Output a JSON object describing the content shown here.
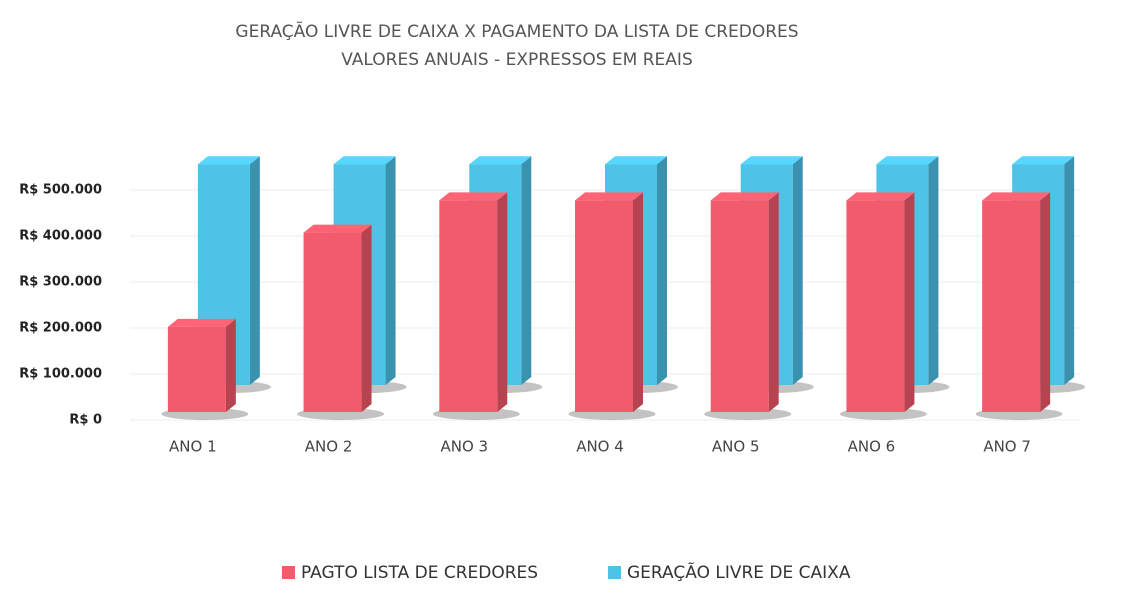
{
  "chart_data": {
    "type": "bar3d",
    "title": "GERAÇÃO LIVRE DE CAIXA X PAGAMENTO DA LISTA DE CREDORES",
    "subtitle": "VALORES ANUAIS - EXPRESSOS EM REAIS",
    "categories": [
      "ANO 1",
      "ANO 2",
      "ANO 3",
      "ANO 4",
      "ANO 5",
      "ANO 6",
      "ANO 7"
    ],
    "series": [
      {
        "name": "PAGTO LISTA DE CREDORES",
        "color": "#f25b6b",
        "values": [
          185000,
          390000,
          460000,
          460000,
          460000,
          460000,
          460000
        ]
      },
      {
        "name": "GERAÇÃO LIVRE DE CAIXA",
        "color": "#4dc3e8",
        "values": [
          480000,
          480000,
          480000,
          480000,
          480000,
          480000,
          480000
        ]
      }
    ],
    "ylim": [
      0,
      500000
    ],
    "yticks": [
      {
        "value": 0,
        "label": "R$ 0"
      },
      {
        "value": 100000,
        "label": "R$ 100.000"
      },
      {
        "value": 200000,
        "label": "R$ 200.000"
      },
      {
        "value": 300000,
        "label": "R$ 300.000"
      },
      {
        "value": 400000,
        "label": "R$ 400.000"
      },
      {
        "value": 500000,
        "label": "R$ 500.000"
      }
    ],
    "grid": true
  }
}
